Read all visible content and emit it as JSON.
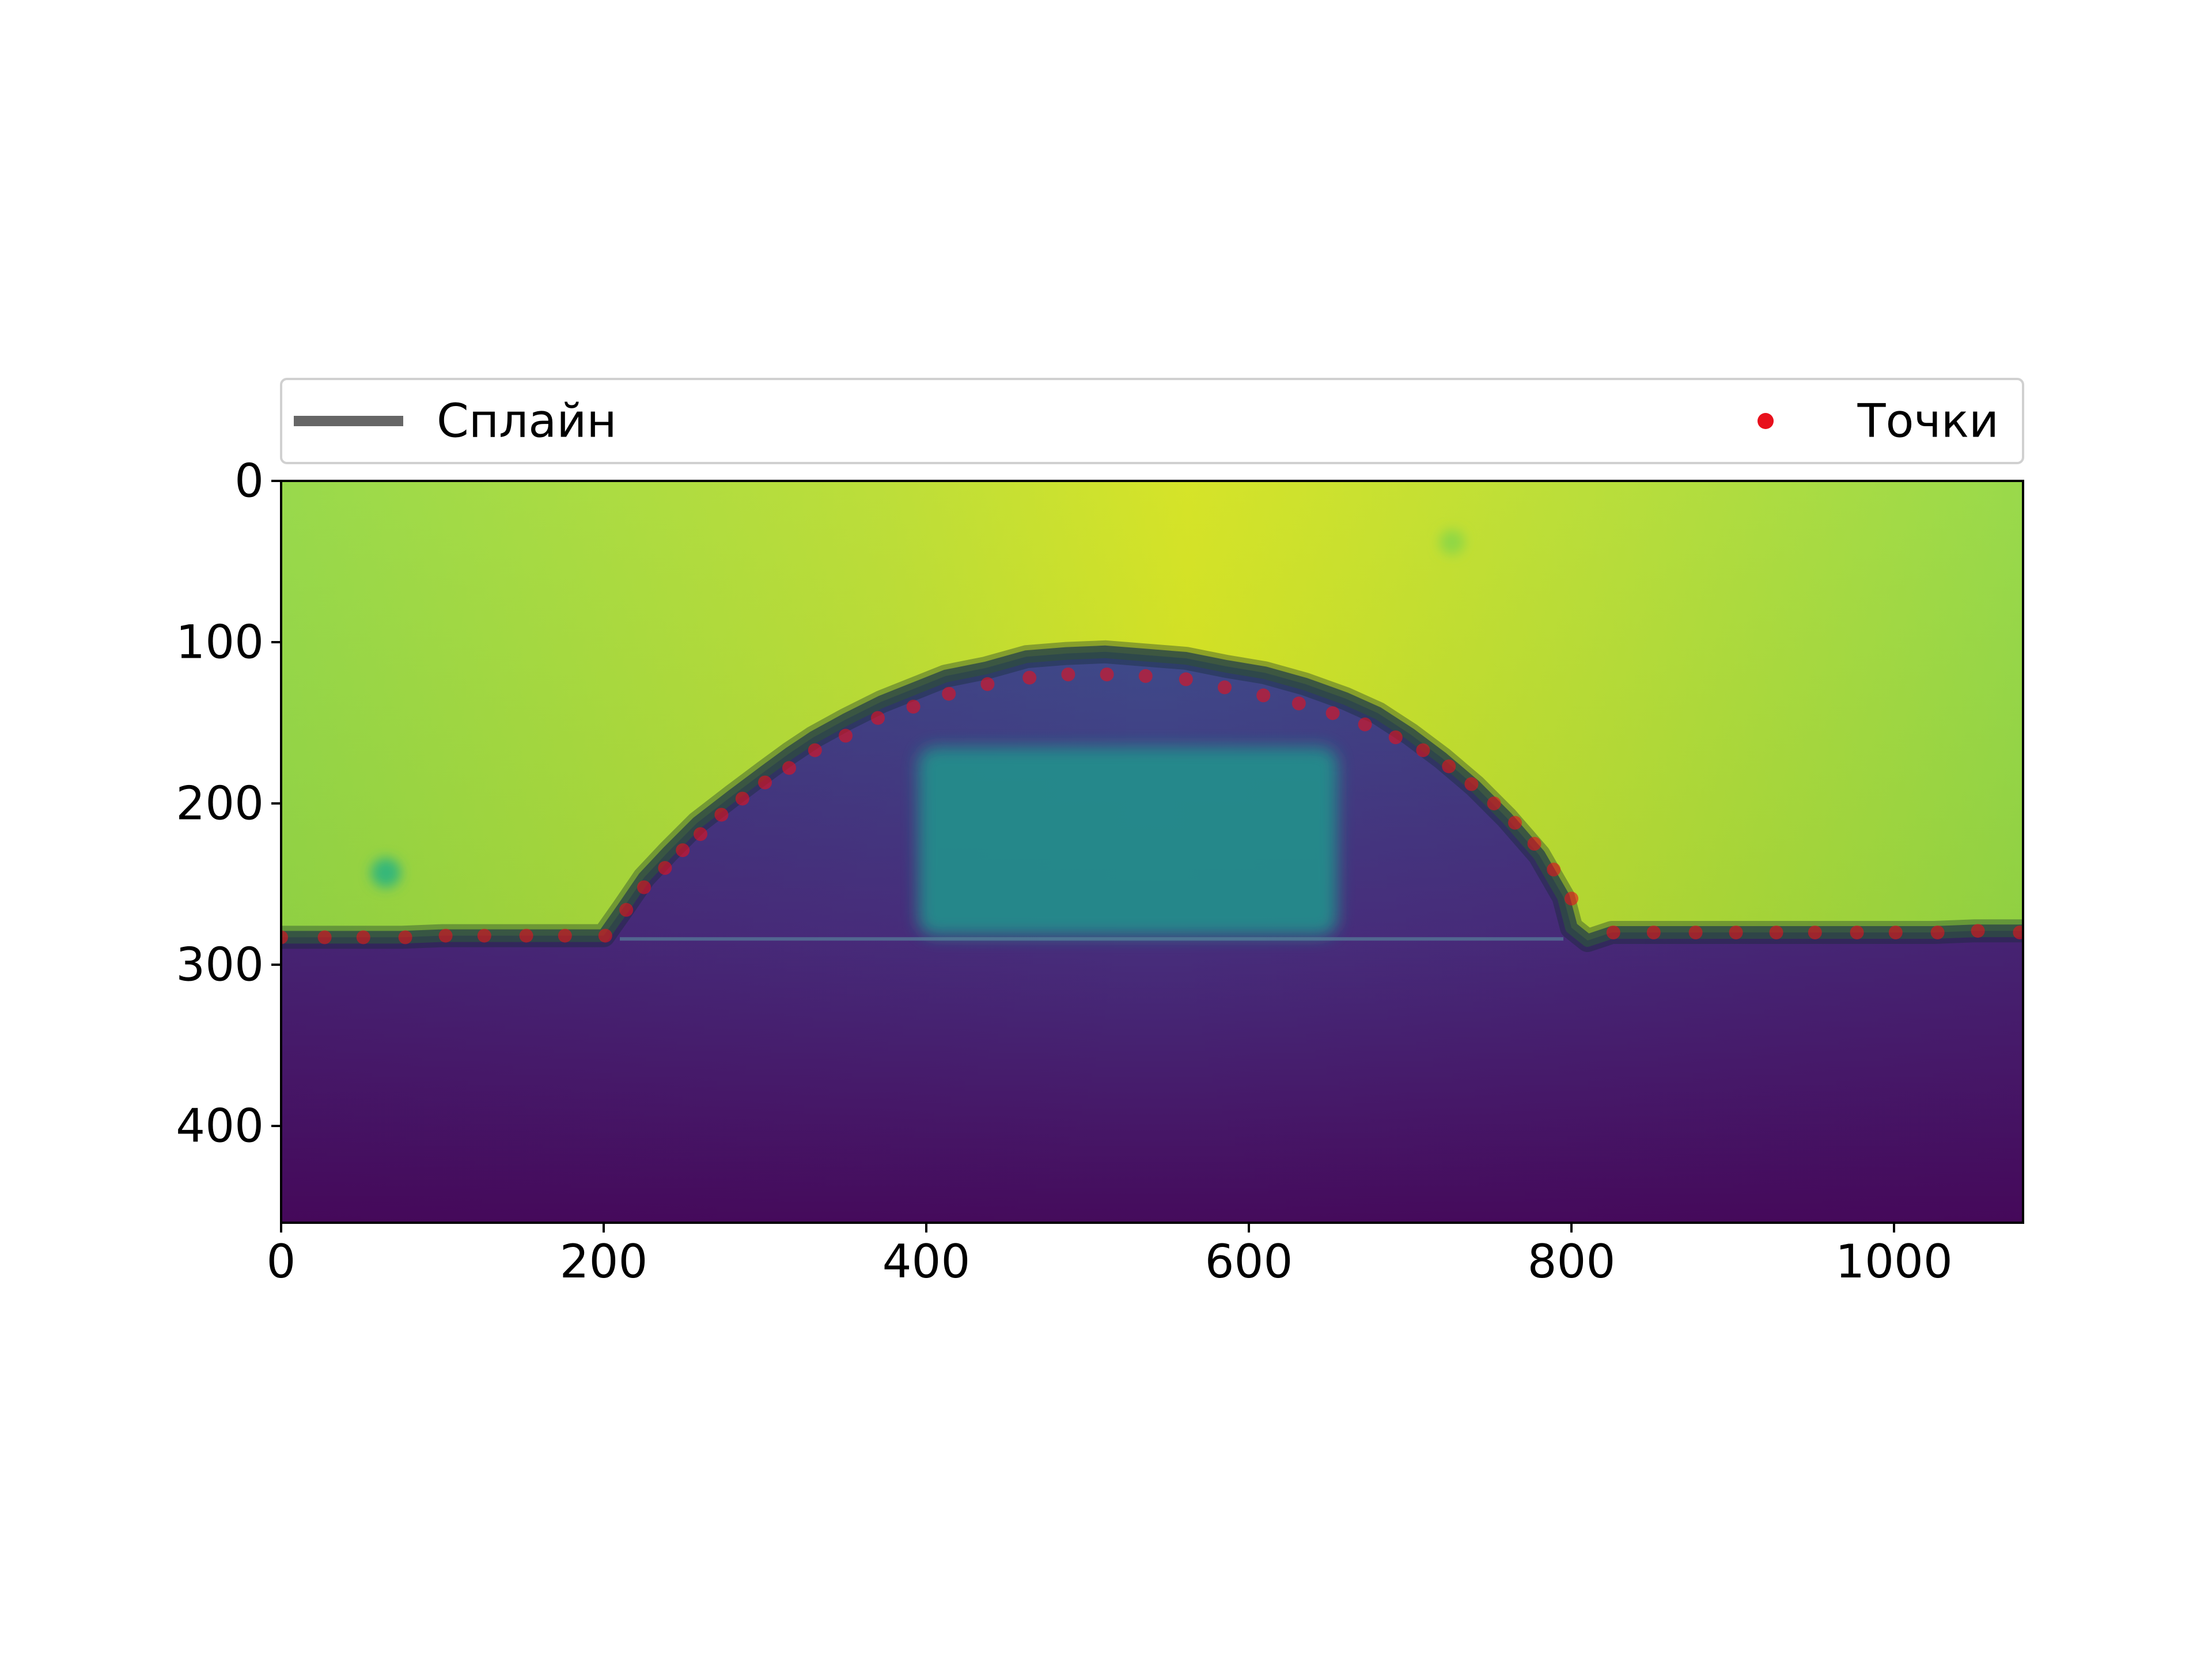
{
  "chart_data": {
    "type": "line",
    "subtype": "image-overlay",
    "background_image": "droplet-profile-heatmap (viridis colormap)",
    "xlim": [
      0,
      1080
    ],
    "ylim": [
      460,
      0
    ],
    "y_inverted": true,
    "x_ticks": [
      0,
      200,
      400,
      600,
      800,
      1000
    ],
    "x_tick_labels": [
      "0",
      "200",
      "400",
      "600",
      "800",
      "1000"
    ],
    "y_ticks": [
      0,
      100,
      200,
      300,
      400
    ],
    "y_tick_labels": [
      "0",
      "100",
      "200",
      "300",
      "400"
    ],
    "grid": false,
    "legend": {
      "placement": "top, spanning above plot",
      "entries": [
        {
          "label": "Сплайн",
          "marker": "line",
          "color": "#4a4a4a"
        },
        {
          "label": "Точки",
          "marker": "dot",
          "color": "#e8101c"
        }
      ]
    },
    "series": [
      {
        "name": "Сплайн",
        "kind": "line",
        "color": "#2f4a45",
        "x": [
          0,
          25,
          50,
          75,
          100,
          125,
          150,
          175,
          200,
          212,
          225,
          240,
          258,
          280,
          300,
          315,
          330,
          350,
          372,
          392,
          412,
          437,
          462,
          487,
          511,
          536,
          561,
          586,
          610,
          635,
          660,
          680,
          700,
          720,
          740,
          760,
          780,
          795,
          800,
          810,
          825,
          850,
          875,
          900,
          925,
          950,
          975,
          1000,
          1025,
          1050,
          1080
        ],
        "y": [
          283,
          283,
          283,
          283,
          282,
          282,
          282,
          282,
          282,
          265,
          246,
          230,
          212,
          195,
          180,
          169,
          159,
          148,
          137,
          129,
          121,
          116,
          109,
          107,
          106,
          108,
          110,
          115,
          119,
          126,
          135,
          144,
          157,
          172,
          189,
          209,
          232,
          258,
          277,
          285,
          280,
          280,
          280,
          280,
          280,
          280,
          280,
          280,
          280,
          279,
          279
        ]
      },
      {
        "name": "Точки",
        "kind": "scatter",
        "color": "#e8101c",
        "x": [
          0,
          27,
          51,
          77,
          102,
          126,
          152,
          176,
          201,
          214,
          225,
          238,
          249,
          260,
          273,
          286,
          300,
          315,
          331,
          350,
          370,
          392,
          414,
          438,
          464,
          488,
          512,
          536,
          561,
          585,
          609,
          631,
          652,
          672,
          691,
          708,
          724,
          738,
          752,
          765,
          777,
          789,
          800,
          826,
          851,
          877,
          902,
          927,
          951,
          977,
          1001,
          1027,
          1052,
          1078
        ],
        "y": [
          283,
          283,
          283,
          283,
          282,
          282,
          282,
          282,
          282,
          266,
          252,
          240,
          229,
          219,
          207,
          197,
          187,
          178,
          167,
          158,
          147,
          140,
          132,
          126,
          122,
          120,
          120,
          121,
          123,
          128,
          133,
          138,
          144,
          151,
          159,
          167,
          177,
          188,
          200,
          212,
          225,
          241,
          259,
          280,
          280,
          280,
          280,
          280,
          280,
          280,
          280,
          280,
          279,
          280
        ]
      }
    ]
  },
  "legend": {
    "spline_label": "Сплайн",
    "points_label": "Точки"
  }
}
